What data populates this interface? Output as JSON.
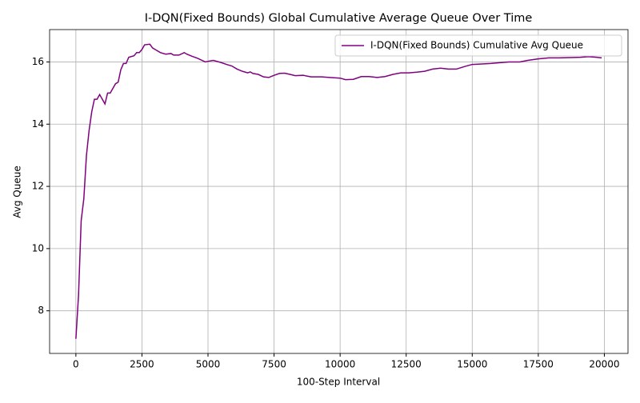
{
  "chart_data": {
    "type": "line",
    "title": "I-DQN(Fixed Bounds) Global Cumulative Average Queue Over Time",
    "x_label": "100-Step Interval",
    "y_label": "Avg Queue",
    "x": [
      0,
      100,
      200,
      300,
      400,
      500,
      600,
      700,
      800,
      900,
      1000,
      1100,
      1200,
      1300,
      1400,
      1500,
      1600,
      1700,
      1800,
      1900,
      2000,
      2200,
      2300,
      2400,
      2500,
      2600,
      2800,
      2900,
      3000,
      3200,
      3400,
      3600,
      3700,
      3900,
      4100,
      4200,
      4400,
      4600,
      4900,
      5000,
      5200,
      5500,
      5700,
      5900,
      6100,
      6300,
      6500,
      6600,
      6700,
      6900,
      7100,
      7300,
      7500,
      7700,
      7900,
      8100,
      8300,
      8600,
      8900,
      9300,
      9600,
      10000,
      10200,
      10500,
      10800,
      11100,
      11400,
      11700,
      12000,
      12300,
      12600,
      12900,
      13200,
      13500,
      13800,
      14100,
      14400,
      14700,
      15000,
      15300,
      15700,
      16100,
      16400,
      16800,
      17100,
      17500,
      17900,
      18300,
      18700,
      19100,
      19400,
      19700,
      19900
    ],
    "series": [
      {
        "name": "I-DQN(Fixed Bounds) Cumulative Avg Queue",
        "color": "#800080",
        "values": [
          7.1,
          8.5,
          10.9,
          11.6,
          13.0,
          13.8,
          14.4,
          14.8,
          14.8,
          14.95,
          14.8,
          14.65,
          15.0,
          15.0,
          15.15,
          15.3,
          15.35,
          15.75,
          15.95,
          15.95,
          16.15,
          16.2,
          16.3,
          16.3,
          16.4,
          16.55,
          16.57,
          16.45,
          16.4,
          16.3,
          16.25,
          16.27,
          16.22,
          16.22,
          16.3,
          16.25,
          16.18,
          16.12,
          16.0,
          16.02,
          16.05,
          15.98,
          15.92,
          15.87,
          15.77,
          15.7,
          15.65,
          15.68,
          15.63,
          15.6,
          15.52,
          15.5,
          15.57,
          15.63,
          15.64,
          15.6,
          15.56,
          15.57,
          15.52,
          15.52,
          15.5,
          15.48,
          15.43,
          15.44,
          15.53,
          15.53,
          15.5,
          15.53,
          15.6,
          15.65,
          15.65,
          15.67,
          15.7,
          15.77,
          15.8,
          15.77,
          15.77,
          15.85,
          15.92,
          15.93,
          15.95,
          15.98,
          16.0,
          16.0,
          16.05,
          16.1,
          16.13,
          16.13,
          16.14,
          16.15,
          16.17,
          16.15,
          16.13
        ]
      }
    ],
    "xlim": [
      -995,
      20895
    ],
    "ylim": [
      6.63,
      17.04
    ],
    "xticks": [
      0,
      2500,
      5000,
      7500,
      10000,
      12500,
      15000,
      17500,
      20000
    ],
    "yticks": [
      8,
      10,
      12,
      14,
      16
    ],
    "grid": true,
    "legend": "upper-right"
  }
}
